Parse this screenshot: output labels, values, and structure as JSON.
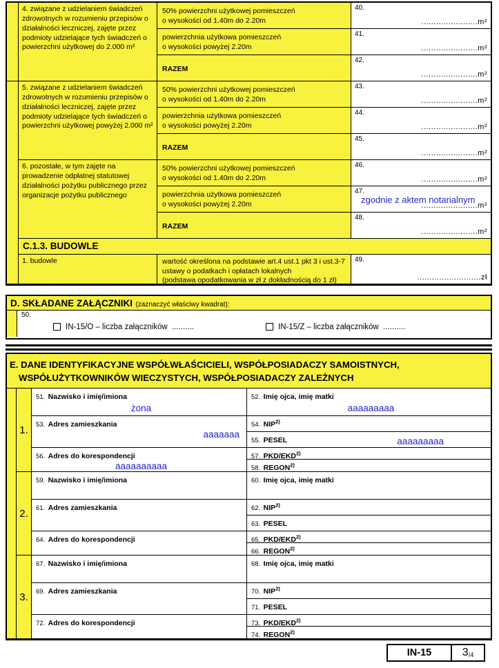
{
  "colors": {
    "yellow": "#F8F13E",
    "blue": "#2424CE",
    "border": "#000000"
  },
  "c12": {
    "items": [
      {
        "desc": "4. związane z udzielaniem świadczeń zdrowotnych w rozumieniu przepisów o działalności leczniczej, zajęte przez podmioty udzielające tych świadczeń o powierzchni użytkowej do 2.000 m²"
      },
      {
        "desc": "5. związane z udzielaniem świadczeń zdrowotnych w rozumieniu przepisów o działalności leczniczej, zajęte przez podmioty udzielające tych świadczeń o powierzchni użytkowej powyżej 2.000 m²"
      },
      {
        "desc": "6. pozostałe, w tym zajęte na prowadzenie odpłatnej statutowej działalności pożytku publicznego przez organizacje pożytku publicznego"
      }
    ],
    "sub": {
      "half1": "50% powierzchni użytkowej pomieszczeń",
      "half2": "o wysokości od 1.40m do 2.20m",
      "full1": "powierzchnia użytkowa pomieszczeń",
      "full2": "o wysokości powyżej 2.20m",
      "razem": "RAZEM"
    },
    "fields": [
      {
        "num": "40.",
        "dots": ".......................",
        "unit": "m²",
        "entry": ""
      },
      {
        "num": "41.",
        "dots": ".......................",
        "unit": "m²",
        "entry": ""
      },
      {
        "num": "42.",
        "dots": ".......................",
        "unit": "m²",
        "entry": ""
      },
      {
        "num": "43.",
        "dots": ".......................",
        "unit": "m²",
        "entry": ""
      },
      {
        "num": "44.",
        "dots": ".......................",
        "unit": "m²",
        "entry": ""
      },
      {
        "num": "45.",
        "dots": ".......................",
        "unit": "m²",
        "entry": ""
      },
      {
        "num": "46.",
        "dots": ".......................",
        "unit": "m²",
        "entry": ""
      },
      {
        "num": "47.",
        "dots": ".......................",
        "unit": "m²",
        "entry": "zgodnie z aktem notarialnym"
      },
      {
        "num": "48.",
        "dots": ".......................",
        "unit": "m²",
        "entry": ""
      }
    ]
  },
  "c13": {
    "title": "C.1.3. BUDOWLE",
    "row_label": "1. budowle",
    "desc1": "wartość określona na podstawie art.4 ust.1 pkt 3 i ust.3-7",
    "desc2": "ustawy o podatkach i opłatach lokalnych",
    "desc3": "(podstawa opodatkowania w zł z dokładnością do 1 zł)",
    "field": {
      "num": "49.",
      "dots": "..........................",
      "unit": "zł",
      "entry": ""
    }
  },
  "section_d": {
    "title": "D. SKŁADANE ZAŁĄCZNIKI",
    "subtitle": "(zaznaczyć właściwy kwadrat):",
    "field_num": "50.",
    "checkboxes": [
      {
        "label": "IN-15/O – liczba załączników",
        "dots": ".........."
      },
      {
        "label": "IN-15/Z – liczba załączników",
        "dots": ".........."
      }
    ]
  },
  "section_e": {
    "title_line1": "E. DANE IDENTYFIKACYJNE WSPÓŁWŁAŚCICIELI, WSPÓŁPOSIADACZY SAMOISTNYCH,",
    "title_line2": "WSPÓŁUŻYTKOWNIKÓW WIECZYSTYCH, WSPÓŁPOSIADACZY ZALEŻNYCH",
    "persons": [
      {
        "index": "1.",
        "name": {
          "num": "51.",
          "label": "Nazwisko i imię/imiona",
          "value": "żona"
        },
        "parents": {
          "num": "52.",
          "label": "Imię ojca, imię matki",
          "value": "aaaaaaaaa"
        },
        "address": {
          "num": "53.",
          "label": "Adres zamieszkania",
          "value": "aaaaaaa"
        },
        "nip": {
          "num": "54.",
          "label": "NIP",
          "sup": "2)",
          "value": ""
        },
        "pesel": {
          "num": "55.",
          "label": "PESEL",
          "value": "aaaaaaaaa"
        },
        "corr": {
          "num": "56.",
          "label": "Adres do korespondencji",
          "value": "aaaaaaaaaa"
        },
        "pkd": {
          "num": "57.",
          "label": "PKD/EKD",
          "sup": "2)",
          "value": ""
        },
        "regon": {
          "num": "58.",
          "label": "REGON",
          "sup": "2)",
          "value": ""
        }
      },
      {
        "index": "2.",
        "name": {
          "num": "59.",
          "label": "Nazwisko i imię/imiona",
          "value": ""
        },
        "parents": {
          "num": "60.",
          "label": "Imię ojca, imię matki",
          "value": ""
        },
        "address": {
          "num": "61.",
          "label": "Adres zamieszkania",
          "value": ""
        },
        "nip": {
          "num": "62.",
          "label": "NIP",
          "sup": "2)",
          "value": ""
        },
        "pesel": {
          "num": "63.",
          "label": "PESEL",
          "value": ""
        },
        "corr": {
          "num": "64.",
          "label": "Adres do korespondencji",
          "value": ""
        },
        "pkd": {
          "num": "65.",
          "label": "PKD/EKD",
          "sup": "2)",
          "value": ""
        },
        "regon": {
          "num": "66.",
          "label": "REGON",
          "sup": "2)",
          "value": ""
        }
      },
      {
        "index": "3.",
        "name": {
          "num": "67.",
          "label": "Nazwisko i imię/imiona",
          "value": ""
        },
        "parents": {
          "num": "68.",
          "label": "Imię ojca, imię matki",
          "value": ""
        },
        "address": {
          "num": "69.",
          "label": "Adres zamieszkania",
          "value": ""
        },
        "nip": {
          "num": "70.",
          "label": "NIP",
          "sup": "2)",
          "value": ""
        },
        "pesel": {
          "num": "71.",
          "label": "PESEL",
          "value": ""
        },
        "corr": {
          "num": "72.",
          "label": "Adres do korespondencji",
          "value": ""
        },
        "pkd": {
          "num": "73.",
          "label": "PKD/EKD",
          "sup": "2)",
          "value": ""
        },
        "regon": {
          "num": "74.",
          "label": "REGON",
          "sup": "2)",
          "value": ""
        }
      }
    ]
  },
  "footer": {
    "code": "IN-15",
    "page": "3",
    "of": "/4"
  }
}
